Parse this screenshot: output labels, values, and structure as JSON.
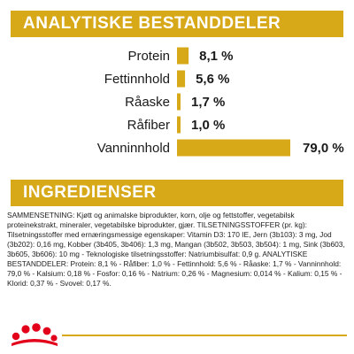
{
  "headings": {
    "analytics": "ANALYTISKE BESTANDDELER",
    "ingredients": "INGREDIENSER"
  },
  "chart_data": {
    "type": "bar",
    "orientation": "horizontal",
    "categories": [
      "Protein",
      "Fettinnhold",
      "Råaske",
      "Råfiber",
      "Vanninnhold"
    ],
    "values": [
      8.1,
      5.6,
      1.7,
      1.0,
      79.0
    ],
    "value_labels": [
      "8,1 %",
      "5,6 %",
      "1,7 %",
      "1,0 %",
      "79,0 %"
    ],
    "unit": "%",
    "bar_color": "#D7A817",
    "grid": false,
    "title": "",
    "xlabel": "",
    "ylabel": ""
  },
  "ingredients_text": "SAMMENSETNING: Kjøtt og animalske biprodukter, korn, olje og fettstoffer, vegetabilsk proteinekstrakt, mineraler, vegetabilske biprodukter, gjær. TILSETNINGSSTOFFER (pr. kg): Tilsetningsstoffer med ernæringsmessige egenskaper: Vitamin D3: 170 IE, Jern (3b103): 3 mg, Jod (3b202): 0,16 mg, Kobber (3b405, 3b406): 1,3 mg, Mangan (3b502, 3b503, 3b504): 1 mg, Sink (3b603, 3b605, 3b606): 10 mg - Teknologiske tilsetningsstoffer: Natriumbisulfat: 0,9 g. ANALYTISKE BESTANDDELER: Protein: 8,1 % - Råfiber: 1,0 % - Fettinnhold: 5,6 % - Råaske: 1,7 % - Vanninnhold: 79,0 % - Kalsium: 0,18 % - Fosfor: 0,16 % - Natrium: 0,26 % - Magnesium: 0,014 % - Kalium: 0,15 % - Klorid: 0,37 % - Svovel: 0,17 %.",
  "logo": {
    "icon": "royal-canin-crown-logo",
    "color": "#E2001A"
  }
}
